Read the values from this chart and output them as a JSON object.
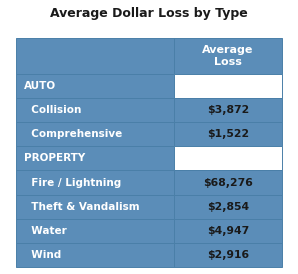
{
  "title": "Average Dollar Loss by Type",
  "col_header": "Average\nLoss",
  "header_bg": "#5b8db8",
  "header_text_color": "#ffffff",
  "section_left_bg": "#5b8db8",
  "section_right_bg": "#ffffff",
  "section_text_color": "#ffffff",
  "row_left_bg": "#5b8db8",
  "row_right_bg": "#5b8db8",
  "row_text_color": "#ffffff",
  "value_text_color": "#1a1a1a",
  "border_color": "#5b8db8",
  "outer_border_color": "#4a7fa8",
  "rows": [
    {
      "label": "AUTO",
      "value": "",
      "is_section": true
    },
    {
      "label": "  Collision",
      "value": "$3,872",
      "is_section": false
    },
    {
      "label": "  Comprehensive",
      "value": "$1,522",
      "is_section": false
    },
    {
      "label": "PROPERTY",
      "value": "",
      "is_section": true
    },
    {
      "label": "  Fire / Lightning",
      "value": "$68,276",
      "is_section": false
    },
    {
      "label": "  Theft & Vandalism",
      "value": "$2,854",
      "is_section": false
    },
    {
      "label": "  Water",
      "value": "$4,947",
      "is_section": false
    },
    {
      "label": "  Wind",
      "value": "$2,916",
      "is_section": false
    }
  ],
  "fig_width": 2.98,
  "fig_height": 2.74,
  "dpi": 100,
  "title_fontsize": 9.0,
  "header_fontsize": 8.0,
  "label_fontsize": 7.5,
  "value_fontsize": 7.8
}
